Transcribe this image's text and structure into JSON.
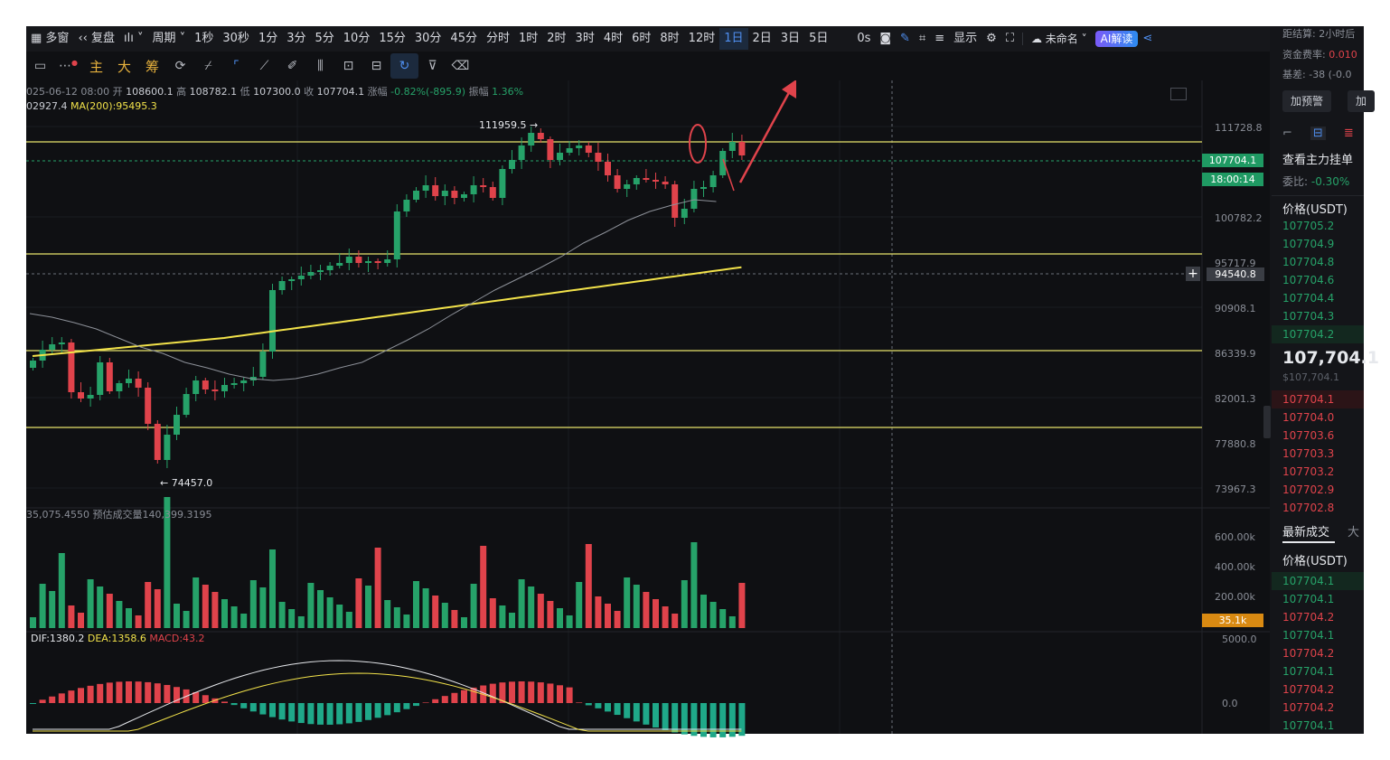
{
  "toolbar": {
    "multi_window": "多窗",
    "replay": "复盘",
    "period": "周期",
    "intervals": [
      "1秒",
      "30秒",
      "1分",
      "3分",
      "5分",
      "10分",
      "15分",
      "30分",
      "45分",
      "分时",
      "1时",
      "2时",
      "3时",
      "4时",
      "6时",
      "8时",
      "12时",
      "1日",
      "2日",
      "3日",
      "5日"
    ],
    "active_interval": "1日",
    "countdown": "0s",
    "display": "显示",
    "layout_name": "未命名",
    "ai_button": "AI解读"
  },
  "indicators": [
    "主",
    "大",
    "筹"
  ],
  "ohlc": {
    "date": "025-06-12 08:00",
    "open_label": "开",
    "open": "108600.1",
    "high_label": "高",
    "high": "108782.1",
    "low_label": "低",
    "low": "107300.0",
    "close_label": "收",
    "close": "107704.1",
    "change_label": "涨幅",
    "change": "-0.82%(-895.9)",
    "amp_label": "振幅",
    "amp": "1.36%"
  },
  "ma": {
    "ma_short": "02927.4",
    "ma200": "MA(200):95495.3"
  },
  "volume_info": {
    "vol": "35,075.4550",
    "est_label": "预估成交量",
    "est": "140,399.3195"
  },
  "macd_info": {
    "dif": "DIF:1380.2",
    "dea": "DEA:1358.6",
    "macd": "MACD:43.2"
  },
  "price_axis": [
    "111728.8",
    "100782.2",
    "95717.9",
    "90908.1",
    "86339.9",
    "82001.3",
    "77880.8",
    "73967.3"
  ],
  "volume_axis": [
    "600.00k",
    "400.00k",
    "200.00k"
  ],
  "macd_axis": [
    "5000.0",
    "0.0"
  ],
  "last_price_tag": "107704.1",
  "countdown_tag": "18:00:14",
  "crosshair_tag": "94540.8",
  "volume_tag": "35.1k",
  "high_label": "111959.5 →",
  "low_label": "← 74457.0",
  "colors": {
    "up": "#26a269",
    "down": "#e0434b",
    "level": "#e8e36b",
    "ma200": "#f2e24a",
    "accent": "#4f8ff0"
  },
  "right_panel": {
    "settle_label": "距结算:",
    "settle_val": "2小时后",
    "fee_label": "资金费率:",
    "fee_val": "0.010",
    "basis_label": "基差:",
    "basis_val": "-38 (-0.0",
    "alert_button": "加预警",
    "alert_button2": "加",
    "orderbook_title": "查看主力挂单",
    "ratio_label": "委比:",
    "ratio_val": "-0.30%",
    "price_header": "价格(USDT)",
    "asks": [
      "107705.2",
      "107704.9",
      "107704.8",
      "107704.6",
      "107704.4",
      "107704.3",
      "107704.2"
    ],
    "last_price": "107,704.1",
    "last_price_usd": "$107,704.1",
    "bids": [
      "107704.1",
      "107704.0",
      "107703.6",
      "107703.3",
      "107703.2",
      "107702.9",
      "107702.8"
    ],
    "trades_title": "最新成交",
    "trades_title2": "大",
    "trades_price_header": "价格(USDT)",
    "trades": [
      {
        "price": "107704.1",
        "side": "buy"
      },
      {
        "price": "107704.1",
        "side": "buy"
      },
      {
        "price": "107704.2",
        "side": "sell"
      },
      {
        "price": "107704.1",
        "side": "buy"
      },
      {
        "price": "107704.2",
        "side": "sell"
      },
      {
        "price": "107704.1",
        "side": "buy"
      },
      {
        "price": "107704.2",
        "side": "sell"
      },
      {
        "price": "107704.2",
        "side": "sell"
      },
      {
        "price": "107704.1",
        "side": "buy"
      }
    ]
  }
}
